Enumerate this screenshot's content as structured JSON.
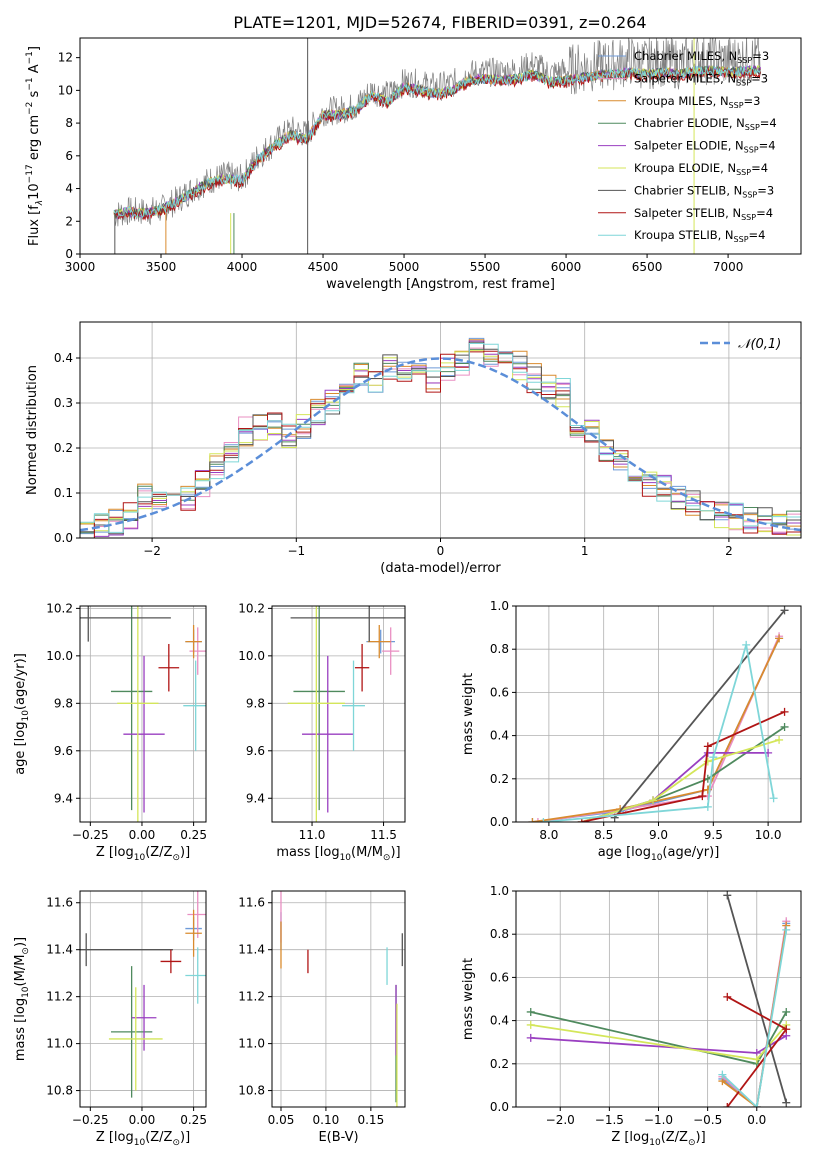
{
  "figure": {
    "title": "PLATE=1201, MJD=52674, FIBERID=0391, z=0.264",
    "series_colors": [
      "#6f9bd8",
      "#e98fc2",
      "#d98b2f",
      "#4f8a5e",
      "#9a3fc1",
      "#d4e65a",
      "#555555",
      "#b01515",
      "#7fd6d8"
    ]
  },
  "chart_data": [
    {
      "id": "spectrum",
      "type": "line",
      "title": "PLATE=1201, MJD=52674, FIBERID=0391, z=0.264",
      "xlabel": "wavelength [Angstrom, rest frame]",
      "ylabel_main": "Flux [f",
      "ylabel_sub": "λ",
      "ylabel_rest": "10",
      "ylabel_exp": "−17",
      "ylabel_tail": " erg cm",
      "ylabel_exp2": "−2",
      "ylabel_tail2": " s",
      "ylabel_exp3": "−1",
      "ylabel_tail3": " A",
      "ylabel_exp4": "−1",
      "ylabel_tail4": "]",
      "xlim": [
        3000,
        7450
      ],
      "ylim": [
        0,
        13.2
      ],
      "xticks": [
        3000,
        3500,
        4000,
        4500,
        5000,
        5500,
        6000,
        6500,
        7000
      ],
      "yticks": [
        0,
        2,
        4,
        6,
        8,
        10,
        12
      ],
      "vlines": [
        4405,
        6790
      ],
      "legend": [
        {
          "name": "Chabrier MILES",
          "nssp": "3"
        },
        {
          "name": "Salpeter MILES",
          "nssp": "3"
        },
        {
          "name": "Kroupa MILES",
          "nssp": "3"
        },
        {
          "name": "Chabrier ELODIE",
          "nssp": "4"
        },
        {
          "name": "Salpeter ELODIE",
          "nssp": "4"
        },
        {
          "name": "Kroupa ELODIE",
          "nssp": "4"
        },
        {
          "name": "Chabrier STELIB",
          "nssp": "3"
        },
        {
          "name": "Salpeter STELIB",
          "nssp": "4"
        },
        {
          "name": "Kroupa STELIB",
          "nssp": "4"
        }
      ],
      "legend_placement": "upper-right",
      "legend_sub": "SSP",
      "legend_prefix": "N",
      "data_x": [
        3210,
        3300,
        3400,
        3500,
        3600,
        3700,
        3800,
        3900,
        4000,
        4100,
        4200,
        4300,
        4400,
        4500,
        4600,
        4700,
        4800,
        4900,
        5000,
        5100,
        5200,
        5300,
        5400,
        5500,
        5600,
        5700,
        5800,
        5900,
        6000,
        6100,
        6200,
        6300,
        6400,
        6500,
        6600,
        6700,
        6800,
        6900,
        7000,
        7100,
        7200
      ],
      "data_y": [
        2.4,
        2.6,
        2.6,
        2.7,
        3.3,
        4.0,
        4.5,
        4.8,
        4.6,
        6.0,
        6.8,
        7.6,
        7.3,
        8.7,
        8.8,
        9.0,
        10.0,
        9.7,
        10.5,
        10.4,
        10.2,
        10.4,
        11.0,
        11.1,
        11.1,
        11.2,
        11.6,
        11.0,
        11.2,
        11.4,
        11.5,
        11.6,
        11.8,
        11.6,
        11.8,
        11.6,
        11.9,
        11.9,
        11.8,
        11.9,
        11.9
      ],
      "model_y": [
        2.4,
        2.6,
        2.5,
        2.7,
        3.2,
        3.8,
        4.4,
        4.6,
        4.5,
        5.8,
        6.6,
        7.3,
        7.0,
        8.5,
        8.5,
        8.8,
        9.7,
        9.3,
        10.2,
        10.0,
        9.8,
        10.0,
        10.6,
        10.7,
        10.6,
        10.7,
        11.0,
        10.5,
        10.6,
        10.8,
        10.9,
        11.0,
        11.1,
        11.0,
        11.1,
        11.0,
        11.2,
        11.2,
        11.1,
        11.2,
        11.2
      ]
    },
    {
      "id": "residual-hist",
      "type": "bar",
      "xlabel": "(data-model)/error",
      "ylabel": "Normed distribution",
      "xlim": [
        -2.5,
        2.5
      ],
      "ylim": [
        0,
        0.48
      ],
      "xticks": [
        -2,
        -1,
        0,
        1,
        2
      ],
      "yticks": [
        0.0,
        0.1,
        0.2,
        0.3,
        0.4
      ],
      "bin_edges_start": -2.5,
      "bin_width": 0.1,
      "legend": "𝒩(0,1)",
      "legend_placement": "upper-right",
      "gaussian_color": "#5b8ed8",
      "hist": [
        [
          0.02,
          0.025,
          0.03,
          0.035,
          0.04,
          0.05,
          0.1,
          0.12,
          0.08,
          0.07,
          0.12,
          0.1,
          0.12,
          0.15,
          0.16,
          0.18,
          0.2,
          0.22,
          0.25,
          0.22,
          0.25,
          0.23,
          0.27,
          0.25,
          0.28,
          0.3,
          0.3,
          0.32,
          0.33,
          0.36,
          0.34,
          0.34,
          0.38,
          0.37,
          0.42,
          0.38,
          0.36,
          0.35,
          0.37,
          0.4,
          0.38,
          0.43,
          0.41,
          0.38,
          0.4,
          0.39,
          0.28,
          0.36,
          0.34,
          0.3,
          0.33,
          0.26,
          0.26,
          0.24,
          0.2,
          0.22,
          0.18,
          0.14,
          0.16,
          0.13,
          0.11,
          0.1,
          0.09,
          0.08,
          0.07,
          0.06,
          0.06,
          0.05,
          0.05,
          0.04,
          0.04,
          0.04,
          0.03,
          0.03,
          0.03
        ],
        [
          0.02,
          0.025,
          0.03,
          0.04,
          0.045,
          0.05,
          0.09,
          0.12,
          0.08,
          0.07,
          0.13,
          0.09,
          0.12,
          0.15,
          0.16,
          0.19,
          0.19,
          0.24,
          0.24,
          0.23,
          0.26,
          0.22,
          0.27,
          0.25,
          0.29,
          0.31,
          0.3,
          0.32,
          0.32,
          0.37,
          0.34,
          0.35,
          0.38,
          0.36,
          0.43,
          0.37,
          0.35,
          0.36,
          0.38,
          0.39,
          0.39,
          0.44,
          0.4,
          0.37,
          0.41,
          0.38,
          0.27,
          0.35,
          0.33,
          0.29,
          0.32,
          0.25,
          0.27,
          0.23,
          0.2,
          0.21,
          0.17,
          0.14,
          0.15,
          0.12,
          0.11,
          0.09,
          0.08,
          0.08,
          0.07,
          0.06,
          0.05,
          0.05,
          0.04,
          0.04,
          0.04,
          0.03,
          0.03,
          0.03,
          0.03
        ]
      ]
    },
    {
      "id": "age-vs-Z",
      "type": "scatter",
      "xlabel": "Z [log",
      "xlabel_sub": "10",
      "xlabel_rest": "(Z/Z",
      "xlabel_sun": "⊙",
      "xlabel_end": ")]",
      "ylabel": "age  [log",
      "ylabel_sub": "10",
      "ylabel_rest": "(age/yr)]",
      "xlim": [
        -0.3,
        0.31
      ],
      "ylim": [
        9.3,
        10.21
      ],
      "xticks": [
        -0.25,
        0.0,
        0.25
      ],
      "xticklabels": [
        "−0.25",
        "0.00",
        "0.25"
      ],
      "yticks": [
        9.4,
        9.6,
        9.8,
        10.0,
        10.2
      ],
      "points": [
        {
          "x": 0.25,
          "y": 10.06,
          "xe": 0.04,
          "ye": 0.05
        },
        {
          "x": 0.27,
          "y": 10.02,
          "xe": 0.04,
          "ye": 0.1
        },
        {
          "x": 0.25,
          "y": 10.06,
          "xe": 0.04,
          "ye": 0.07
        },
        {
          "x": -0.05,
          "y": 9.85,
          "xe": 0.1,
          "ye": 0.5
        },
        {
          "x": 0.01,
          "y": 9.67,
          "xe": 0.1,
          "ye": 0.33
        },
        {
          "x": -0.02,
          "y": 9.8,
          "xe": 0.1,
          "ye": 0.5
        },
        {
          "x": -0.26,
          "y": 10.16,
          "xe": 0.4,
          "ye": 0.1
        },
        {
          "x": 0.13,
          "y": 9.95,
          "xe": 0.05,
          "ye": 0.1
        },
        {
          "x": 0.26,
          "y": 9.79,
          "xe": 0.06,
          "ye": 0.19
        }
      ]
    },
    {
      "id": "age-vs-mass",
      "type": "scatter",
      "xlabel": "mass [log",
      "xlabel_sub": "10",
      "xlabel_rest": "(M/M",
      "xlabel_sun": "⊙",
      "xlabel_end": ")]",
      "xlim": [
        10.72,
        11.65
      ],
      "ylim": [
        9.3,
        10.21
      ],
      "xticks": [
        11.0,
        11.5
      ],
      "xticklabels": [
        "11.0",
        "11.5"
      ],
      "yticks": [
        9.4,
        9.6,
        9.8,
        10.0,
        10.2
      ],
      "points": [
        {
          "x": 11.48,
          "y": 10.06,
          "xe": 0.1,
          "ye": 0.05
        },
        {
          "x": 11.55,
          "y": 10.02,
          "xe": 0.06,
          "ye": 0.1
        },
        {
          "x": 11.47,
          "y": 10.06,
          "xe": 0.08,
          "ye": 0.07
        },
        {
          "x": 11.05,
          "y": 9.85,
          "xe": 0.18,
          "ye": 0.5
        },
        {
          "x": 11.11,
          "y": 9.67,
          "xe": 0.18,
          "ye": 0.33
        },
        {
          "x": 11.03,
          "y": 9.8,
          "xe": 0.2,
          "ye": 0.5
        },
        {
          "x": 11.4,
          "y": 10.16,
          "xe": 0.55,
          "ye": 0.1
        },
        {
          "x": 11.35,
          "y": 9.95,
          "xe": 0.05,
          "ye": 0.1
        },
        {
          "x": 11.29,
          "y": 9.79,
          "xe": 0.08,
          "ye": 0.19
        }
      ]
    },
    {
      "id": "weight-vs-age",
      "type": "line",
      "xlabel": "age  [log",
      "xlabel_sub": "10",
      "xlabel_rest": "(age/yr)]",
      "ylabel": "mass weight",
      "xlim": [
        7.7,
        10.3
      ],
      "ylim": [
        0,
        1.0
      ],
      "xticks": [
        8.0,
        8.5,
        9.0,
        9.5,
        10.0
      ],
      "yticks": [
        0.0,
        0.2,
        0.4,
        0.6,
        0.8,
        1.0
      ],
      "series": [
        {
          "x": [
            7.85,
            8.65,
            9.45,
            10.1
          ],
          "y": [
            0.0,
            0.05,
            0.15,
            0.85
          ]
        },
        {
          "x": [
            7.9,
            8.7,
            9.45,
            10.1
          ],
          "y": [
            0.0,
            0.06,
            0.12,
            0.86
          ]
        },
        {
          "x": [
            7.85,
            8.65,
            9.45,
            10.1
          ],
          "y": [
            0.0,
            0.06,
            0.15,
            0.85
          ]
        },
        {
          "x": [
            8.3,
            8.95,
            9.45,
            10.15
          ],
          "y": [
            0.0,
            0.1,
            0.2,
            0.44
          ]
        },
        {
          "x": [
            8.3,
            8.95,
            9.45,
            10.0
          ],
          "y": [
            0.0,
            0.1,
            0.32,
            0.32
          ]
        },
        {
          "x": [
            8.3,
            8.95,
            9.45,
            10.1
          ],
          "y": [
            0.0,
            0.1,
            0.28,
            0.38
          ]
        },
        {
          "x": [
            8.6,
            10.15
          ],
          "y": [
            0.02,
            0.98
          ]
        },
        {
          "x": [
            8.3,
            9.4,
            9.45,
            10.15
          ],
          "y": [
            0.0,
            0.12,
            0.35,
            0.51
          ]
        },
        {
          "x": [
            7.95,
            9.45,
            9.5,
            9.8,
            10.05
          ],
          "y": [
            0.0,
            0.07,
            0.3,
            0.82,
            0.11
          ]
        }
      ]
    },
    {
      "id": "mass-vs-Z",
      "type": "scatter",
      "xlabel": "Z [log",
      "xlabel_sub": "10",
      "xlabel_rest": "(Z/Z",
      "xlabel_sun": "⊙",
      "xlabel_end": ")]",
      "ylabel": "mass [log",
      "ylabel_sub": "10",
      "ylabel_rest": "(M/M",
      "ylabel_sun": "⊙",
      "ylabel_end": ")]",
      "xlim": [
        -0.3,
        0.31
      ],
      "ylim": [
        10.73,
        11.65
      ],
      "xticks": [
        -0.25,
        0.0,
        0.25
      ],
      "xticklabels": [
        "−0.25",
        "0.00",
        "0.25"
      ],
      "yticks": [
        10.8,
        11.0,
        11.2,
        11.4,
        11.6
      ],
      "points": [
        {
          "x": 0.25,
          "y": 11.49,
          "xe": 0.04,
          "ye": 0.05
        },
        {
          "x": 0.27,
          "y": 11.55,
          "xe": 0.05,
          "ye": 0.1
        },
        {
          "x": 0.25,
          "y": 11.47,
          "xe": 0.04,
          "ye": 0.1
        },
        {
          "x": -0.05,
          "y": 11.05,
          "xe": 0.1,
          "ye": 0.28
        },
        {
          "x": 0.01,
          "y": 11.11,
          "xe": 0.06,
          "ye": 0.14
        },
        {
          "x": -0.03,
          "y": 11.02,
          "xe": 0.13,
          "ye": 0.22
        },
        {
          "x": -0.27,
          "y": 11.4,
          "xe": 0.42,
          "ye": 0.07
        },
        {
          "x": 0.14,
          "y": 11.35,
          "xe": 0.05,
          "ye": 0.05
        },
        {
          "x": 0.27,
          "y": 11.29,
          "xe": 0.06,
          "ye": 0.12
        }
      ]
    },
    {
      "id": "mass-vs-ebv",
      "type": "scatter",
      "xlabel": "E(B-V)",
      "xlim": [
        0.04,
        0.188
      ],
      "ylim": [
        10.73,
        11.65
      ],
      "xticks": [
        0.05,
        0.1,
        0.15
      ],
      "xticklabels": [
        "0.05",
        "0.10",
        "0.15"
      ],
      "yticks": [
        10.8,
        11.0,
        11.2,
        11.4,
        11.6
      ],
      "points": [
        {
          "x": 0.05,
          "y": 11.48,
          "ye": 0.08
        },
        {
          "x": 0.05,
          "y": 11.55,
          "ye": 0.12
        },
        {
          "x": 0.05,
          "y": 11.42,
          "ye": 0.1
        },
        {
          "x": 0.178,
          "y": 11.0,
          "ye": 0.25
        },
        {
          "x": 0.178,
          "y": 11.1,
          "ye": 0.15
        },
        {
          "x": 0.179,
          "y": 10.95,
          "ye": 0.22
        },
        {
          "x": 0.185,
          "y": 11.4,
          "ye": 0.07
        },
        {
          "x": 0.08,
          "y": 11.35,
          "ye": 0.05
        },
        {
          "x": 0.168,
          "y": 11.33,
          "ye": 0.08
        }
      ]
    },
    {
      "id": "weight-vs-Z",
      "type": "line",
      "xlabel": "Z [log",
      "xlabel_sub": "10",
      "xlabel_rest": "(Z/Z",
      "xlabel_sun": "⊙",
      "xlabel_end": ")]",
      "ylabel": "mass weight",
      "xlim": [
        -2.45,
        0.45
      ],
      "ylim": [
        0,
        1.0
      ],
      "xticks": [
        -2.0,
        -1.5,
        -1.0,
        -0.5,
        0.0
      ],
      "xticklabels": [
        "−2.0",
        "−1.5",
        "−1.0",
        "−0.5",
        "0.0"
      ],
      "yticks": [
        0.0,
        0.2,
        0.4,
        0.6,
        0.8,
        1.0
      ],
      "series": [
        {
          "x": [
            -0.35,
            0.0,
            0.3
          ],
          "y": [
            0.13,
            0.0,
            0.85
          ]
        },
        {
          "x": [
            -0.35,
            0.0,
            0.3
          ],
          "y": [
            0.14,
            0.0,
            0.86
          ]
        },
        {
          "x": [
            -0.35,
            0.0,
            0.3
          ],
          "y": [
            0.12,
            0.0,
            0.84
          ]
        },
        {
          "x": [
            -2.3,
            0.0,
            0.3
          ],
          "y": [
            0.44,
            0.2,
            0.44
          ]
        },
        {
          "x": [
            -2.3,
            0.0,
            0.3
          ],
          "y": [
            0.32,
            0.25,
            0.33
          ]
        },
        {
          "x": [
            -2.3,
            0.0,
            0.3
          ],
          "y": [
            0.38,
            0.22,
            0.38
          ]
        },
        {
          "x": [
            -0.3,
            0.3
          ],
          "y": [
            0.98,
            0.02
          ]
        },
        {
          "x": [
            -0.3,
            0.3,
            -0.3
          ],
          "y": [
            0.0,
            0.36,
            0.51
          ]
        },
        {
          "x": [
            -0.35,
            0.0,
            0.3
          ],
          "y": [
            0.15,
            0.0,
            0.82
          ]
        }
      ]
    }
  ]
}
